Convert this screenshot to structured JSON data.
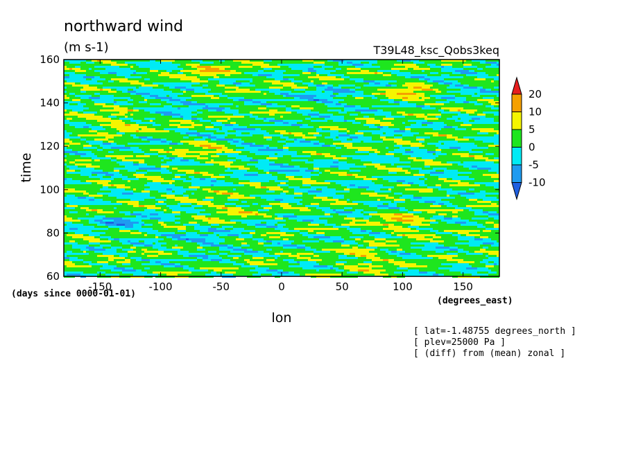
{
  "chart_data": {
    "type": "heatmap",
    "title": "northward wind",
    "units": "(m s-1)",
    "run_label": "T39L48_ksc_Qobs3keq",
    "xlabel": "lon",
    "ylabel": "time",
    "x_units": "(degrees_east)",
    "y_units": "(days since 0000-01-01)",
    "xlim": [
      -180,
      180
    ],
    "ylim": [
      60,
      160
    ],
    "x_ticks": [
      -150,
      -100,
      -50,
      0,
      50,
      100,
      150
    ],
    "y_ticks": [
      60,
      80,
      100,
      120,
      140,
      160
    ],
    "colorbar": {
      "levels": [
        -10,
        -5,
        0,
        5,
        10,
        20
      ],
      "colors": [
        "#1f5fe0",
        "#1e9bf0",
        "#00ebf5",
        "#1ee61e",
        "#f5f500",
        "#f5a000",
        "#e61e1e"
      ]
    },
    "notes": [
      "[ lat=-1.48755 degrees_north ]",
      "[ plev=25000 Pa ]",
      "[ (diff) from (mean) zonal ]"
    ]
  }
}
